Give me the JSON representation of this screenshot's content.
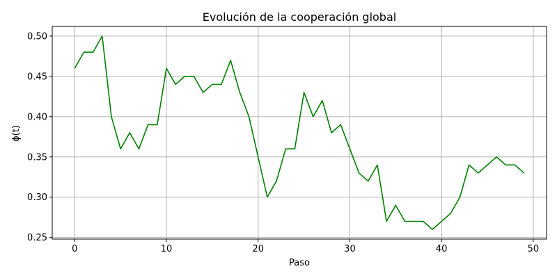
{
  "chart_data": {
    "type": "line",
    "title": "Evolución de la cooperación global",
    "xlabel": "Paso",
    "ylabel": "ϕ(t)",
    "xlim": [
      -2.45,
      51.45
    ],
    "ylim": [
      0.248,
      0.512
    ],
    "xticks": [
      0,
      10,
      20,
      30,
      40,
      50
    ],
    "yticks": [
      0.25,
      0.3,
      0.35,
      0.4,
      0.45,
      0.5
    ],
    "ytick_labels": [
      "0.25",
      "0.30",
      "0.35",
      "0.40",
      "0.45",
      "0.50"
    ],
    "grid": true,
    "line_color": "#008000",
    "series": [
      {
        "x": [
          0,
          1,
          2,
          3,
          4,
          5,
          6,
          7,
          8,
          9,
          10,
          11,
          12,
          13,
          14,
          15,
          16,
          17,
          18,
          19,
          20,
          21,
          22,
          23,
          24,
          25,
          26,
          27,
          28,
          29,
          30,
          31,
          32,
          33,
          34,
          35,
          36,
          37,
          38,
          39,
          40,
          41,
          42,
          43,
          44,
          45,
          46,
          47,
          48,
          49
        ],
        "values": [
          0.46,
          0.48,
          0.48,
          0.5,
          0.4,
          0.36,
          0.38,
          0.36,
          0.39,
          0.39,
          0.46,
          0.44,
          0.45,
          0.45,
          0.43,
          0.44,
          0.44,
          0.47,
          0.43,
          0.4,
          0.35,
          0.3,
          0.32,
          0.36,
          0.36,
          0.43,
          0.4,
          0.42,
          0.38,
          0.39,
          0.36,
          0.33,
          0.32,
          0.34,
          0.27,
          0.29,
          0.27,
          0.27,
          0.27,
          0.26,
          0.27,
          0.28,
          0.3,
          0.34,
          0.33,
          0.34,
          0.35,
          0.34,
          0.34,
          0.33
        ]
      }
    ]
  }
}
